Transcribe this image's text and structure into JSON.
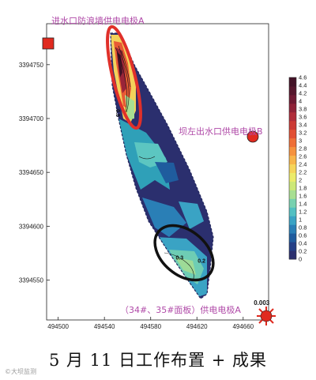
{
  "chart_data": {
    "type": "heatmap",
    "title": "",
    "xlabel": "",
    "ylabel": "",
    "x_ticks": [
      494500,
      494540,
      494580,
      494620,
      494660
    ],
    "y_ticks": [
      3394750,
      3394700,
      3394650,
      3394600,
      3394550
    ],
    "xlim": [
      494490,
      494682
    ],
    "ylim": [
      3394513,
      3394788
    ],
    "colorbar": {
      "ticks": [
        0,
        0.2,
        0.4,
        0.6,
        0.8,
        1,
        1.2,
        1.4,
        1.6,
        1.8,
        2,
        2.2,
        2.4,
        2.6,
        2.8,
        3,
        3.2,
        3.4,
        3.6,
        3.8,
        4,
        4.2,
        4.4,
        4.6
      ],
      "tick_labels": [
        "0",
        "0.2",
        "0.4",
        "0.6",
        "0.8",
        "1",
        "1.2",
        "1.4",
        "1.6",
        "1.8",
        "2",
        "2.2",
        "2.4",
        "2.6",
        "2.8",
        "3",
        "3.2",
        "3.4",
        "3.6",
        "3.8",
        "4",
        "4.2",
        "4.4",
        "4.6"
      ],
      "colors": [
        "#2b2f6e",
        "#243f86",
        "#1f5c9e",
        "#2a7fb6",
        "#3aa3c4",
        "#52c0c2",
        "#78d1b0",
        "#a8df92",
        "#cde878",
        "#ecec6a",
        "#f6d55a",
        "#f8b54a",
        "#f6923e",
        "#ef6f37",
        "#e24f33",
        "#cc3a35",
        "#b02d3a",
        "#8f2238",
        "#6f1a33",
        "#55162c",
        "#431226"
      ]
    },
    "regions": [
      {
        "label": "0.5",
        "value": 0.5,
        "kind": "contour",
        "x": 494550,
        "y": 3394705
      },
      {
        "label": "0.3",
        "value": 0.3,
        "kind": "contour",
        "x": 494605,
        "y": 3394569
      },
      {
        "label": "0.2",
        "value": 0.2,
        "kind": "contour",
        "x": 494624,
        "y": 3394566
      },
      {
        "label": "0.003",
        "value": 0.003,
        "kind": "point",
        "x": 494676,
        "y": 3394527
      }
    ],
    "electrodes": [
      {
        "name": "进水口防浪墙供电电极A",
        "x": 494494,
        "y": 3394762,
        "marker": "square"
      },
      {
        "name": "坝左出水口供电电极B",
        "x": 494676,
        "y": 3394679,
        "marker": "circle"
      },
      {
        "name": "（34#、35#面板）供电电极A",
        "x": 494676,
        "y": 3394521,
        "marker": "sun"
      }
    ]
  },
  "caption": "5 月 11 日工作布置 + 成果",
  "watermark": "©大坝监测"
}
